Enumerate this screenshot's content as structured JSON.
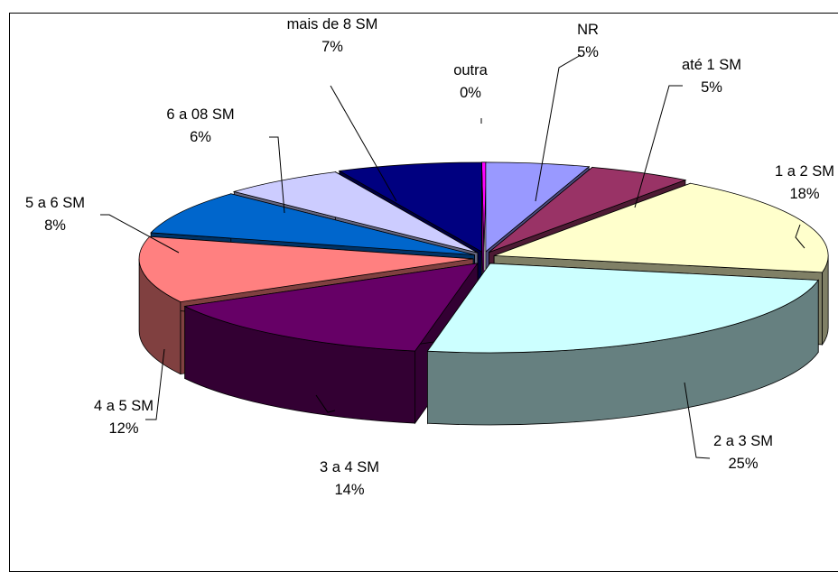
{
  "chart_data": {
    "type": "pie",
    "variant": "3d-exploded",
    "legend": "none",
    "slices": [
      {
        "label": "NR",
        "value": 5,
        "pct": "5%",
        "color": "#9999FF",
        "side": "#4D4D80"
      },
      {
        "label": "até 1 SM",
        "value": 5,
        "pct": "5%",
        "color": "#993366",
        "side": "#4D1A33"
      },
      {
        "label": "1 a 2 SM",
        "value": 18,
        "pct": "18%",
        "color": "#FFFFCC",
        "side": "#808066"
      },
      {
        "label": "2 a 3 SM",
        "value": 25,
        "pct": "25%",
        "color": "#CCFFFF",
        "side": "#668080"
      },
      {
        "label": "3 a 4 SM",
        "value": 14,
        "pct": "14%",
        "color": "#660066",
        "side": "#330033"
      },
      {
        "label": "4 a 5 SM",
        "value": 12,
        "pct": "12%",
        "color": "#FF8080",
        "side": "#804040"
      },
      {
        "label": "5 a 6 SM",
        "value": 8,
        "pct": "8%",
        "color": "#0066CC",
        "side": "#003366"
      },
      {
        "label": "6 a 08 SM",
        "value": 6,
        "pct": "6%",
        "color": "#CCCCFF",
        "side": "#666680"
      },
      {
        "label": "mais de 8 SM",
        "value": 7,
        "pct": "7%",
        "color": "#000080",
        "side": "#000040"
      },
      {
        "label": "outra",
        "value": 0,
        "pct": "0%",
        "color": "#FF00FF",
        "side": "#800080"
      }
    ]
  }
}
